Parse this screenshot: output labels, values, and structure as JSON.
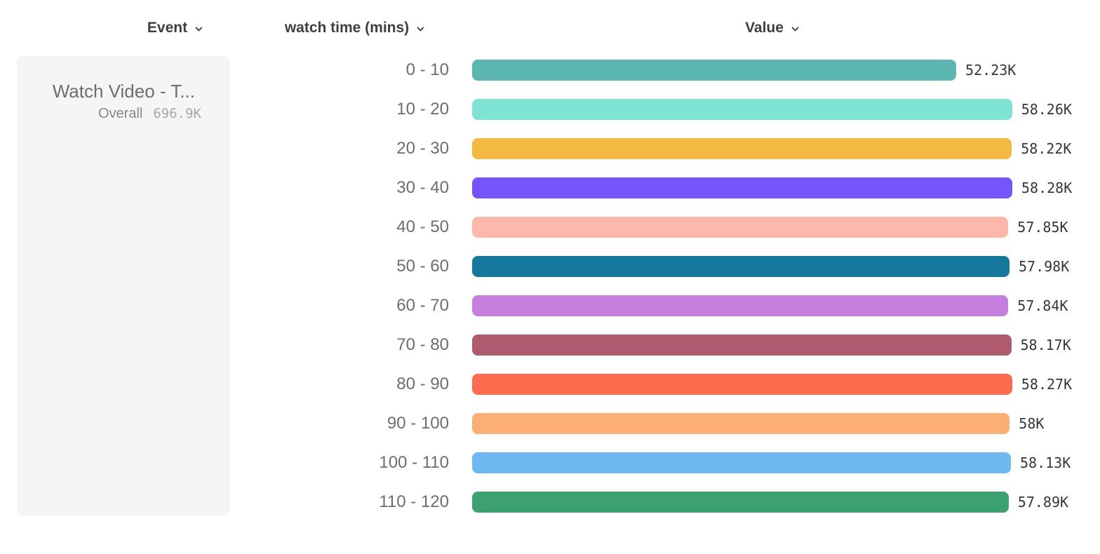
{
  "header": {
    "event_label": "Event",
    "breakdown_label": "watch time (mins)",
    "value_label": "Value"
  },
  "event_card": {
    "title": "Watch Video - T...",
    "overall_label": "Overall",
    "overall_value": "696.9K"
  },
  "chart_data": {
    "type": "bar",
    "orientation": "horizontal",
    "series_name": "Watch Video - T...",
    "categories": [
      "0 - 10",
      "10 - 20",
      "20 - 30",
      "30 - 40",
      "40 - 50",
      "50 - 60",
      "60 - 70",
      "70 - 80",
      "80 - 90",
      "90 - 100",
      "100 - 110",
      "110 - 120"
    ],
    "values": [
      52230,
      58260,
      58220,
      58280,
      57850,
      57980,
      57840,
      58170,
      58270,
      58000,
      58130,
      57890
    ],
    "value_labels": [
      "52.23K",
      "58.26K",
      "58.22K",
      "58.28K",
      "57.85K",
      "57.98K",
      "57.84K",
      "58.17K",
      "58.27K",
      "58K",
      "58.13K",
      "57.89K"
    ],
    "bar_colors": [
      "#5ab6ae",
      "#7fe3d3",
      "#f4b942",
      "#7554fa",
      "#fcb9ab",
      "#15799e",
      "#c77fdf",
      "#b05a70",
      "#fc6d4f",
      "#fbaf75",
      "#6fb9f1",
      "#3ca16e"
    ],
    "category_axis_label": "watch time (mins)",
    "value_axis_label": "Value",
    "value_axis_max": 58280,
    "overall_total": "696.9K",
    "legend": "none",
    "grid": false
  }
}
